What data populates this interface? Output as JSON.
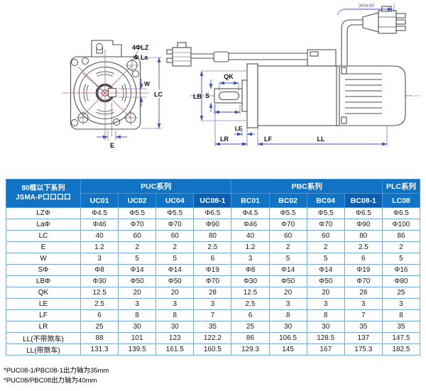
{
  "drawing": {
    "front_view_labels": {
      "bolt_holes": "4ΦLZ",
      "flange_dia": "Φ La",
      "keyway_width": "W",
      "frame": "LC",
      "keyway_offset": "E"
    },
    "side_view_labels": {
      "shaft_dia": "S",
      "pilot_dia": "LB",
      "keyflat_len": "QK",
      "pilot_depth": "LE",
      "shaft_len": "LR",
      "flange_thk": "LF",
      "body_len": "LL",
      "cable_len": "300±30"
    }
  },
  "table": {
    "corner_header": [
      "80框以下系列",
      "JSMA-P口口口口"
    ],
    "series_groups": [
      {
        "label": "PUC系列",
        "span": 4
      },
      {
        "label": "PBC系列",
        "span": 4
      },
      {
        "label": "PLC系列",
        "span": 1
      }
    ],
    "models": [
      {
        "label": "UC01"
      },
      {
        "label": "UC02"
      },
      {
        "label": "UC04"
      },
      {
        "label": "UC08-1",
        "emphasis": true
      },
      {
        "label": "BC01"
      },
      {
        "label": "BC02"
      },
      {
        "label": "BC04"
      },
      {
        "label": "BC08-1",
        "emphasis": true
      },
      {
        "label": "LC08"
      }
    ],
    "rows": [
      {
        "label": "LZΦ",
        "values": [
          "Φ4.5",
          "Φ5.5",
          "Φ5.5",
          "Φ6.5",
          "Φ4.5",
          "Φ5.5",
          "Φ5.5",
          "Φ6.5",
          "Φ6.5"
        ]
      },
      {
        "label": "LaΦ",
        "values": [
          "Φ46",
          "Φ70",
          "Φ70",
          "Φ90",
          "Φ46",
          "Φ70",
          "Φ70",
          "Φ90",
          "Φ100"
        ]
      },
      {
        "label": "LC",
        "values": [
          "40",
          "60",
          "60",
          "80",
          "40",
          "60",
          "60",
          "80",
          "86"
        ]
      },
      {
        "label": "E",
        "values": [
          "1.2",
          "2",
          "2",
          "2.5",
          "1.2",
          "2",
          "2",
          "2.5",
          "2"
        ]
      },
      {
        "label": "W",
        "values": [
          "3",
          "5",
          "5",
          "6",
          "3",
          "5",
          "5",
          "6",
          "5"
        ]
      },
      {
        "label": "SΦ",
        "values": [
          "Φ8",
          "Φ14",
          "Φ14",
          "Φ19",
          "Φ8",
          "Φ14",
          "Φ14",
          "Φ19",
          "Φ16"
        ]
      },
      {
        "label": "LBΦ",
        "values": [
          "Φ30",
          "Φ50",
          "Φ50",
          "Φ70",
          "Φ30",
          "Φ50",
          "Φ50",
          "Φ70",
          "Φ80"
        ]
      },
      {
        "label": "QK",
        "values": [
          "12.5",
          "20",
          "20",
          "28",
          "12.5",
          "20",
          "20",
          "28",
          "25"
        ]
      },
      {
        "label": "LE",
        "values": [
          "2.5",
          "3",
          "3",
          "3",
          "2.5",
          "3",
          "3",
          "3",
          "3"
        ]
      },
      {
        "label": "LF",
        "values": [
          "6",
          "8",
          "8",
          "7",
          "6",
          "8",
          "8",
          "7",
          "8"
        ]
      },
      {
        "label": "LR",
        "values": [
          "25",
          "30",
          "30",
          "35",
          "25",
          "30",
          "30",
          "35",
          "35"
        ]
      },
      {
        "label": "LL(不带煞车)",
        "values": [
          "88",
          "101",
          "123",
          "122.2",
          "86",
          "106.5",
          "128.5",
          "137",
          "147.5"
        ]
      },
      {
        "label": "LL(带煞车)",
        "values": [
          "131.3",
          "139.5",
          "161.5",
          "160.5",
          "129.3",
          "145",
          "167",
          "175.3",
          "182.5"
        ]
      }
    ]
  },
  "footnotes": {
    "line1": "*PUC08-1/PBC08-1出力轴为35mm",
    "line2": "*PUC08/PBC08出力轴为40mm"
  },
  "colors": {
    "header_blue": "#1173c4",
    "header_blue_dark": "#0c5fae",
    "table_border_blue": "#78a8d8",
    "dimension_blue": "#3d4fb8",
    "centerline_red": "#c46060",
    "outline_gray": "#4d4d4d"
  }
}
